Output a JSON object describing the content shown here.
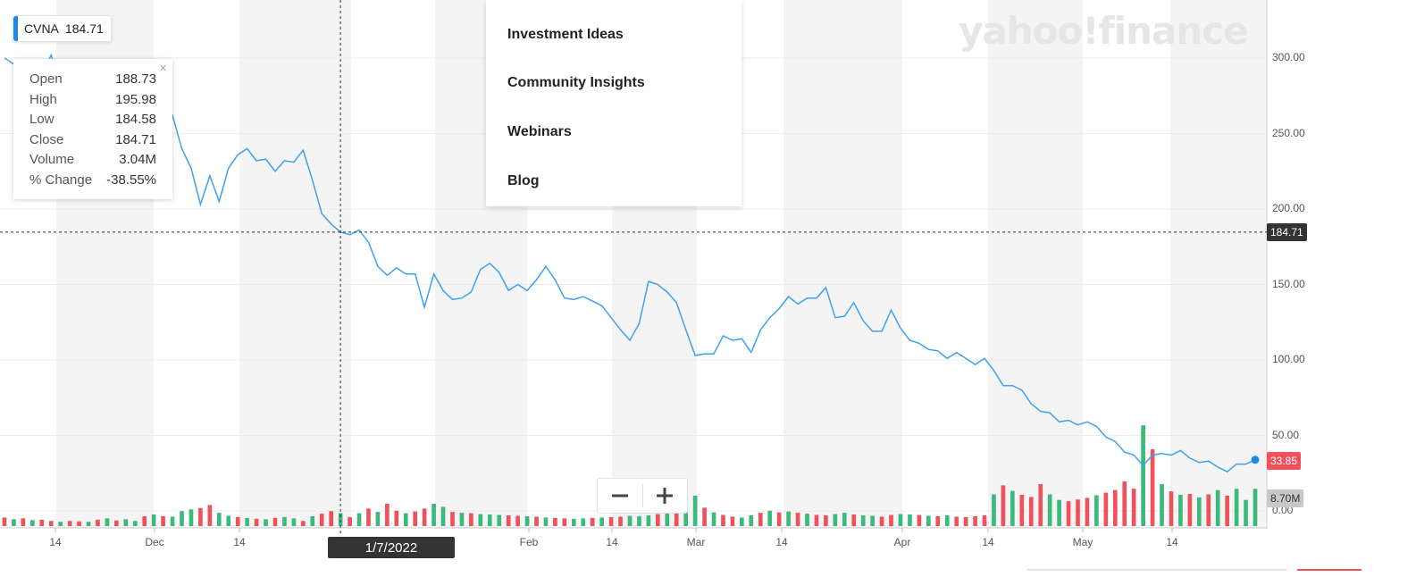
{
  "ticker": {
    "symbol": "CVNA",
    "price": "184.71"
  },
  "tooltip": {
    "rows": [
      {
        "label": "Open",
        "value": "188.73"
      },
      {
        "label": "High",
        "value": "195.98"
      },
      {
        "label": "Low",
        "value": "184.58"
      },
      {
        "label": "Close",
        "value": "184.71"
      },
      {
        "label": "Volume",
        "value": "3.04M"
      },
      {
        "label": "% Change",
        "value": "-38.55%"
      }
    ],
    "close_glyph": "×"
  },
  "menu": {
    "items": [
      "Investment Ideas",
      "Community Insights",
      "Webinars",
      "Blog"
    ]
  },
  "watermark": "yahoo!finance",
  "crosshair_date": "1/7/2022",
  "zoom": {
    "minus_icon": "minus-icon",
    "plus_icon": "plus-icon"
  },
  "tags": {
    "crosshair_price": "184.71",
    "last_price": "33.85",
    "last_volume": "8.70M"
  },
  "colors": {
    "line": "#3ea0f1",
    "up": "#3cba7d",
    "down": "#f0525b",
    "band": "#f4f4f4",
    "last_price_tag": "#f0525b",
    "crosshair_tag": "#333333",
    "volume_tag": "#c8c8c8"
  },
  "chart_data": {
    "type": "line",
    "series": [
      {
        "name": "CVNA",
        "values": [
          300,
          296,
          291,
          297,
          288,
          302,
          285,
          289,
          279,
          275,
          272,
          270,
          262,
          264,
          265,
          268,
          268,
          271,
          262,
          240,
          227,
          203,
          222,
          205,
          227,
          236,
          240,
          232,
          233,
          225,
          232,
          231,
          239,
          219,
          197,
          190,
          184.71,
          183,
          186,
          178,
          162,
          156,
          161,
          157,
          157,
          135,
          157,
          146,
          140,
          141,
          145,
          160,
          164,
          158,
          146,
          150,
          146,
          153,
          162,
          153,
          141,
          140,
          142,
          139,
          136,
          128,
          120,
          113,
          124,
          152,
          150,
          145,
          138,
          120,
          103,
          104,
          104,
          116,
          113,
          114,
          105,
          120,
          128,
          134,
          142,
          137,
          141,
          141,
          148,
          128,
          129,
          138,
          126,
          119,
          119,
          133,
          121,
          113,
          111,
          107,
          106,
          101,
          105,
          101,
          97,
          101,
          93,
          83,
          83,
          80,
          71,
          66,
          65,
          59,
          60,
          57,
          59,
          56,
          49,
          46,
          39,
          37,
          30,
          37,
          38,
          37,
          40,
          35,
          32,
          33,
          29,
          26,
          31,
          31,
          33.85
        ]
      }
    ],
    "volume": {
      "up": [
        false,
        true,
        false,
        true,
        false,
        false,
        true,
        false,
        false,
        true,
        false,
        true,
        false,
        true,
        true,
        false,
        true,
        false,
        true,
        true,
        true,
        false,
        false,
        true,
        true,
        false,
        true,
        false,
        true,
        false,
        true,
        true,
        false,
        true,
        false,
        false,
        true,
        false,
        true,
        false,
        true,
        false,
        false,
        true,
        false,
        false,
        true,
        true,
        false,
        true,
        false,
        true,
        true,
        true,
        false,
        false,
        true,
        false,
        true,
        false,
        false,
        true,
        true,
        false,
        true,
        false,
        false,
        true,
        true,
        true,
        false,
        true,
        false,
        true,
        true,
        false,
        true,
        false,
        false,
        true,
        true,
        false,
        true,
        false,
        true,
        false,
        true,
        false,
        false,
        true,
        true,
        false,
        true,
        true,
        false,
        false,
        true,
        true,
        false,
        true,
        false,
        true,
        false,
        false,
        false,
        false,
        true,
        false,
        true,
        false,
        false,
        false,
        true,
        true,
        false,
        false,
        false,
        true,
        false,
        false,
        false,
        false,
        true,
        false,
        true,
        false,
        true,
        false,
        true,
        false,
        true,
        false,
        true,
        true,
        true
      ],
      "values": [
        2.0,
        1.6,
        1.8,
        1.4,
        1.5,
        1.2,
        1.0,
        1.2,
        1.1,
        1.0,
        1.5,
        1.8,
        1.3,
        1.6,
        1.2,
        2.3,
        2.7,
        2.3,
        2.2,
        3.5,
        3.9,
        4.2,
        4.9,
        3.1,
        2.4,
        2.1,
        1.9,
        1.7,
        1.6,
        1.9,
        2.1,
        1.8,
        1.2,
        2.3,
        2.9,
        3.5,
        3.04,
        2.1,
        3.0,
        4.1,
        3.3,
        5.2,
        3.6,
        3.0,
        3.4,
        4.1,
        5.2,
        4.5,
        3.3,
        3.1,
        3.0,
        2.8,
        2.7,
        2.6,
        2.5,
        2.4,
        2.3,
        2.2,
        2.0,
        1.9,
        1.8,
        1.7,
        1.8,
        1.9,
        2.0,
        2.1,
        2.2,
        2.4,
        2.3,
        2.5,
        2.8,
        3.0,
        3.3,
        3.6,
        7.1,
        4.3,
        3.2,
        2.6,
        2.2,
        2.0,
        2.5,
        3.1,
        3.6,
        3.2,
        3.4,
        3.1,
        2.9,
        2.6,
        2.5,
        2.8,
        3.1,
        2.7,
        2.5,
        2.4,
        2.2,
        2.6,
        2.8,
        2.7,
        2.6,
        2.4,
        2.3,
        2.5,
        2.2,
        2.1,
        2.3,
        2.5,
        7.4,
        9.5,
        8.2,
        7.3,
        6.8,
        9.8,
        7.4,
        6.1,
        5.8,
        6.2,
        6.6,
        7.2,
        7.8,
        8.4,
        10.4,
        8.7,
        23.5,
        17.9,
        9.8,
        8.1,
        7.3,
        7.5,
        6.7,
        7.4,
        8.4,
        7.1,
        8.7,
        6.1,
        8.7
      ]
    },
    "y_ticks": [
      "300.00",
      "250.00",
      "200.00",
      "150.00",
      "100.00",
      "50.00",
      "0.00"
    ],
    "ylim": [
      0,
      330
    ],
    "x_ticks": [
      "14",
      "Dec",
      "14",
      "Feb",
      "14",
      "Mar",
      "14",
      "Apr",
      "14",
      "May",
      "14"
    ],
    "grid": true
  }
}
